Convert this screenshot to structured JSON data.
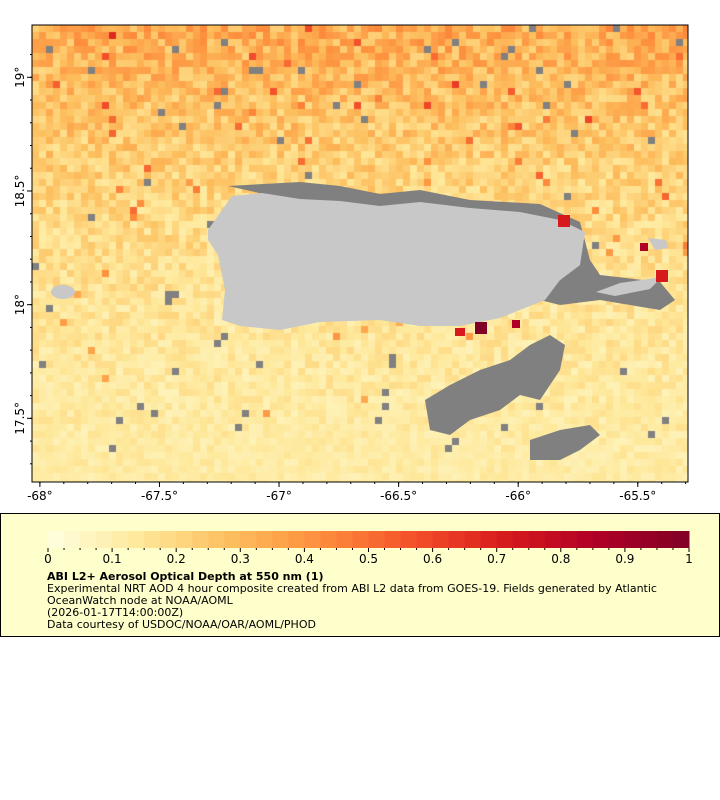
{
  "map": {
    "lon_range": [
      -68.033,
      -65.29
    ],
    "lat_range": [
      17.22,
      19.23
    ],
    "x_ticks": [
      "-68°",
      "-67.5°",
      "-67°",
      "-66.5°",
      "-66°",
      "-65.5°"
    ],
    "x_tick_values": [
      -68,
      -67.5,
      -67,
      -66.5,
      -66,
      -65.5
    ],
    "y_ticks": [
      "19°",
      "18.5°",
      "18°",
      "17.5°"
    ],
    "y_tick_values": [
      19,
      18.5,
      18,
      17.5
    ],
    "land_color": "#c8c8c8",
    "nodata_color": "#808080"
  },
  "colorbar": {
    "min": 0,
    "max": 1,
    "labels": [
      "0",
      "0.1",
      "0.2",
      "0.3",
      "0.4",
      "0.5",
      "0.6",
      "0.7",
      "0.8",
      "0.9",
      "1"
    ],
    "colors": [
      "#ffffe0",
      "#fee89a",
      "#fdbe5d",
      "#fd8d3c",
      "#f4502a",
      "#d7191c",
      "#b00026",
      "#800026"
    ]
  },
  "legend": {
    "title": "ABI L2+ Aerosol Optical Depth at 550 nm (1)",
    "line1": "Experimental NRT AOD 4 hour composite created from ABI L2 data from GOES-19. Fields generated by Atlantic",
    "line2": "OceanWatch node at NOAA/AOML",
    "line3": "(2026-01-17T14:00:00Z)",
    "line4": "Data courtesy of USDOC/NOAA/OAR/AOML/PHOD"
  }
}
